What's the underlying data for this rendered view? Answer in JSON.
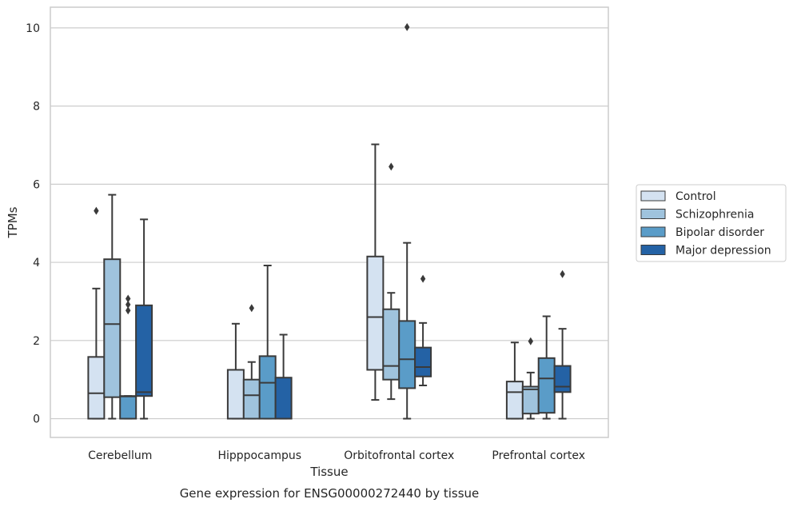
{
  "chart_data": {
    "type": "box",
    "caption": "Gene expression for ENSG00000272440 by tissue",
    "xlabel": "Tissue",
    "ylabel": "TPMs",
    "ylim": [
      -0.48,
      10.53
    ],
    "yticks": [
      0,
      2,
      4,
      6,
      8,
      10
    ],
    "grid": "horizontal",
    "legend_position": "right",
    "categories": [
      "Cerebellum",
      "Hipppocampus",
      "Orbitofrontal cortex",
      "Prefrontal cortex"
    ],
    "series": [
      {
        "name": "Control",
        "color": "#d4e2f1",
        "boxes": [
          {
            "whislo": 0,
            "q1": 0,
            "med": 0.65,
            "q3": 1.58,
            "whishi": 3.33,
            "fliers": [
              5.32
            ]
          },
          {
            "whislo": 0,
            "q1": 0,
            "med": 0,
            "q3": 1.25,
            "whishi": 2.43,
            "fliers": []
          },
          {
            "whislo": 0.48,
            "q1": 1.25,
            "med": 2.6,
            "q3": 4.15,
            "whishi": 7.02,
            "fliers": []
          },
          {
            "whislo": 0,
            "q1": 0,
            "med": 0.68,
            "q3": 0.95,
            "whishi": 1.95,
            "fliers": []
          }
        ]
      },
      {
        "name": "Schizophrenia",
        "color": "#9fc3dd",
        "boxes": [
          {
            "whislo": 0,
            "q1": 0.55,
            "med": 2.42,
            "q3": 4.08,
            "whishi": 5.73,
            "fliers": []
          },
          {
            "whislo": 0,
            "q1": 0,
            "med": 0.6,
            "q3": 1.0,
            "whishi": 1.45,
            "fliers": [
              2.83
            ]
          },
          {
            "whislo": 0.5,
            "q1": 1.0,
            "med": 1.35,
            "q3": 2.8,
            "whishi": 3.22,
            "fliers": [
              6.45
            ]
          },
          {
            "whislo": 0,
            "q1": 0.13,
            "med": 0.75,
            "q3": 0.82,
            "whishi": 1.18,
            "fliers": [
              1.98
            ]
          }
        ]
      },
      {
        "name": "Bipolar disorder",
        "color": "#5a9cc8",
        "boxes": [
          {
            "whislo": 0,
            "q1": 0,
            "med": 0.57,
            "q3": 0.58,
            "whishi": 0.58,
            "fliers": [
              2.77,
              2.92,
              3.07
            ]
          },
          {
            "whislo": 0,
            "q1": 0,
            "med": 0.92,
            "q3": 1.6,
            "whishi": 3.92,
            "fliers": []
          },
          {
            "whislo": 0,
            "q1": 0.78,
            "med": 1.52,
            "q3": 2.5,
            "whishi": 4.5,
            "fliers": [
              10.02
            ]
          },
          {
            "whislo": 0,
            "q1": 0.15,
            "med": 1.03,
            "q3": 1.55,
            "whishi": 2.62,
            "fliers": []
          }
        ]
      },
      {
        "name": "Major depression",
        "color": "#2462a5",
        "boxes": [
          {
            "whislo": 0,
            "q1": 0.58,
            "med": 0.68,
            "q3": 2.9,
            "whishi": 5.1,
            "fliers": []
          },
          {
            "whislo": 0,
            "q1": 0,
            "med": 0,
            "q3": 1.05,
            "whishi": 2.15,
            "fliers": []
          },
          {
            "whislo": 0.85,
            "q1": 1.08,
            "med": 1.32,
            "q3": 1.82,
            "whishi": 2.45,
            "fliers": [
              3.58
            ]
          },
          {
            "whislo": 0,
            "q1": 0.68,
            "med": 0.82,
            "q3": 1.35,
            "whishi": 2.3,
            "fliers": [
              3.7
            ]
          }
        ]
      }
    ]
  }
}
